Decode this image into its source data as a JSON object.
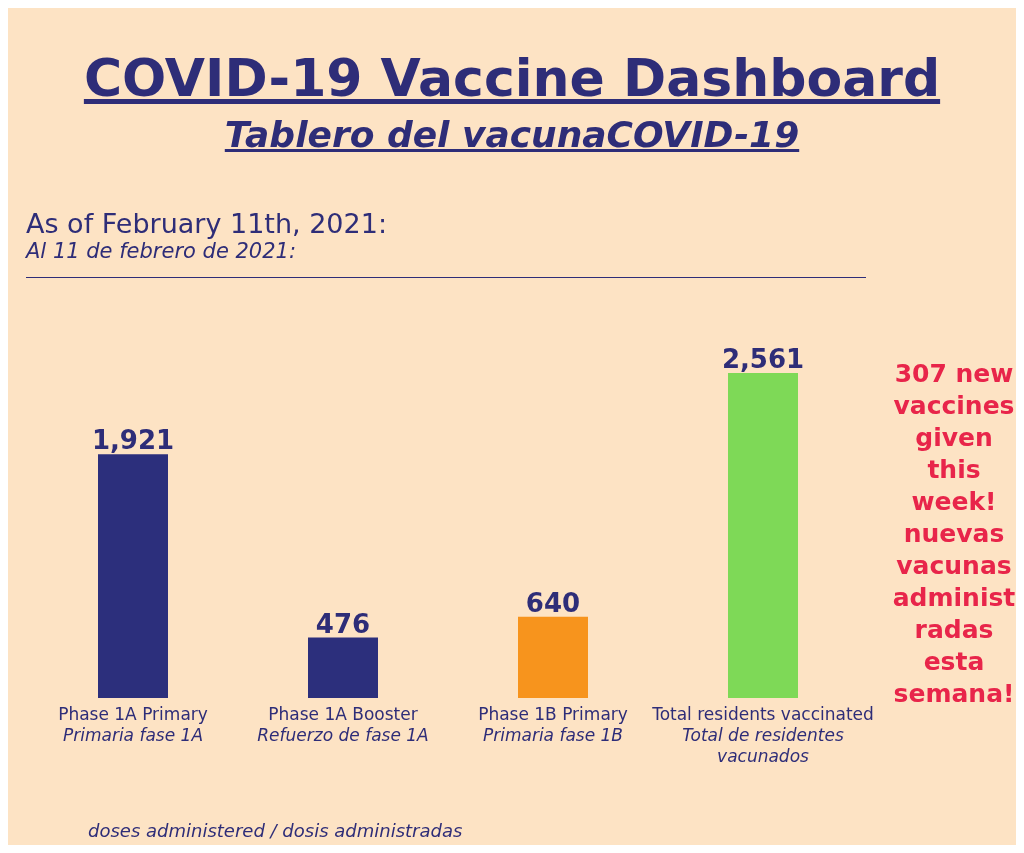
{
  "chart_data": {
    "type": "bar",
    "title": "COVID-19 Vaccine Dashboard",
    "subtitle": "Tablero del vacunaCOVID-19",
    "annotations": [
      "As of February 11th, 2021:",
      "Al 11 de febrero de 2021:",
      "307 new vaccines given this week! nuevas vacunas administradas esta semana!"
    ],
    "categories": [
      "Phase 1A Primary\nPrimaria fase 1A",
      "Phase 1A Booster\nRefuerzo de fase 1A",
      "Phase 1B Primary\nPrimaria fase 1B",
      "Total residents vaccinated\nTotal de residentes\nvacunados"
    ],
    "values": [
      1921,
      476,
      640,
      2561
    ],
    "colors": [
      "#2c2f7c",
      "#2c2f7c",
      "#f7941d",
      "#7ed957"
    ],
    "xlabel": "doses administered / dosis administradas",
    "value_labels": [
      "1,921",
      "476",
      "640",
      "2,561"
    ],
    "legend": false,
    "grid": false
  }
}
